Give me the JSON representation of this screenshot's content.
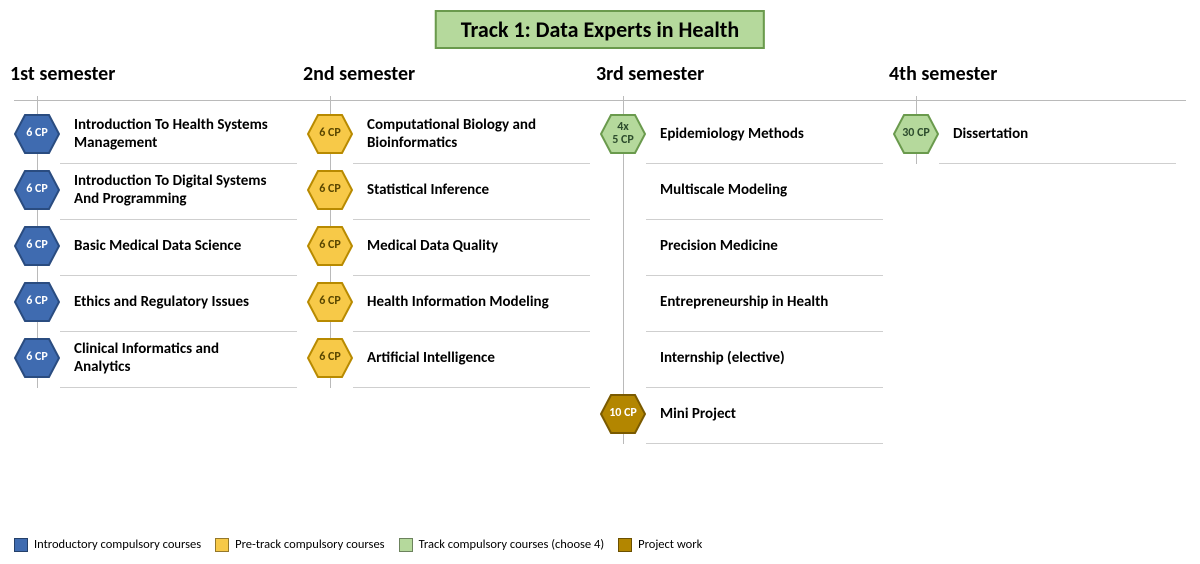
{
  "title": "Track 1: Data Experts in Health",
  "colors": {
    "blue_fill": "#3f6bb0",
    "blue_stroke": "#2a4c80",
    "yellow_fill": "#f7c948",
    "yellow_stroke": "#b88a00",
    "green_fill": "#b5d99c",
    "green_stroke": "#6a9a4d",
    "brown_fill": "#b38600",
    "brown_stroke": "#7a5a00"
  },
  "semesters": [
    {
      "title": "1st semester",
      "items": [
        {
          "type": "blue",
          "cp": "6 CP",
          "name": "Introduction To Health Systems Management"
        },
        {
          "type": "blue",
          "cp": "6 CP",
          "name": "Introduction To Digital Systems And Programming"
        },
        {
          "type": "blue",
          "cp": "6 CP",
          "name": "Basic Medical Data Science"
        },
        {
          "type": "blue",
          "cp": "6 CP",
          "name": "Ethics and Regulatory Issues"
        },
        {
          "type": "blue",
          "cp": "6 CP",
          "name": "Clinical Informatics and Analytics"
        }
      ]
    },
    {
      "title": "2nd semester",
      "items": [
        {
          "type": "yellow",
          "cp": "6 CP",
          "name": "Computational Biology and Bioinformatics"
        },
        {
          "type": "yellow",
          "cp": "6 CP",
          "name": "Statistical Inference"
        },
        {
          "type": "yellow",
          "cp": "6 CP",
          "name": "Medical Data Quality"
        },
        {
          "type": "yellow",
          "cp": "6 CP",
          "name": "Health Information Modeling"
        },
        {
          "type": "yellow",
          "cp": "6 CP",
          "name": "Artificial Intelligence"
        }
      ]
    },
    {
      "title": "3rd semester",
      "header_hex": {
        "type": "green",
        "cp": "4x\n5 CP"
      },
      "items": [
        {
          "type": "none",
          "name": "Epidemiology Methods"
        },
        {
          "type": "none",
          "name": "Multiscale Modeling"
        },
        {
          "type": "none",
          "name": "Precision Medicine"
        },
        {
          "type": "none",
          "name": "Entrepreneurship in Health"
        },
        {
          "type": "none",
          "name": "Internship (elective)"
        },
        {
          "type": "brown",
          "cp": "10 CP",
          "name": "Mini Project"
        }
      ]
    },
    {
      "title": "4th semester",
      "items": [
        {
          "type": "green",
          "cp": "30 CP",
          "name": "Dissertation"
        }
      ]
    }
  ],
  "legend": [
    {
      "color_key": "blue_fill",
      "label": "Introductory compulsory courses"
    },
    {
      "color_key": "yellow_fill",
      "label": "Pre-track compulsory courses"
    },
    {
      "color_key": "green_fill",
      "label": "Track compulsory courses (choose 4)"
    },
    {
      "color_key": "brown_fill",
      "label": "Project work"
    }
  ]
}
